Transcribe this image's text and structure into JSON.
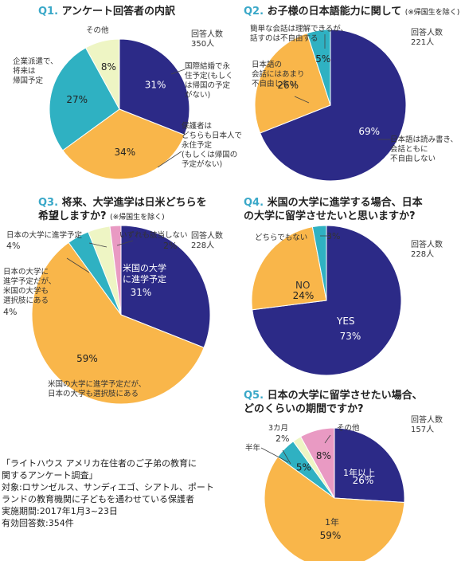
{
  "colors": {
    "navy": "#2c2a87",
    "orange": "#f9b64a",
    "teal": "#2fb1c2",
    "cream": "#eef5c4",
    "pink": "#e99ac3",
    "question_num": "#3aa8c8"
  },
  "q1": {
    "num": "Q1.",
    "title": "アンケート回答者の内訳",
    "respondents": "回答人数\n350人",
    "labels": {
      "kokusai": "国際結婚で永\n住予定(もしく\nは帰国の予定\nがない)",
      "hogosha": "保護者は\nどちらも日本人で\n永住予定\n(もしくは帰国の\n予定がない)",
      "kigyou": "企業派遣で、\n将来は\n帰国予定",
      "sonota": "その他"
    }
  },
  "q2": {
    "num": "Q2.",
    "title": "お子様の日本語能力に関して",
    "note": "(※帰国生を除く)",
    "respondents": "回答人数\n221人",
    "labels": {
      "kantan": "簡単な会話は理解できるが、\n話すのは不自由する",
      "amari": "日本語の\n会話にはあまり\n不自由しない",
      "yomikaki": "日本語は読み書き、\n会話ともに\n不自由しない"
    }
  },
  "q3": {
    "num": "Q3.",
    "title_l1": "将来、大学進学は日米どちらを",
    "title_l2": "希望しますか?",
    "note": "(※帰国生を除く)",
    "respondents": "回答人数\n228人",
    "labels": {
      "nihon": "日本の大学に進学予定",
      "nihon_pct": "4%",
      "izure": "いずれも該当しない",
      "izure_pct": "2%",
      "nichibei": "日本の大学に\n進学予定だが、\n米国の大学も\n選択肢にある",
      "nichibei_pct": "4%",
      "beikoku_in": "米国の大学\nに進学予定",
      "beikoku_dual": "米国の大学に進学予定だが、\n日本の大学も選択肢にある"
    }
  },
  "q4": {
    "num": "Q4.",
    "title_l1": "米国の大学に進学する場合、日本",
    "title_l2": "の大学に留学させたいと思いますか?",
    "respondents": "回答人数\n228人",
    "labels": {
      "dochira": "どちらでもない",
      "dochira_pct": "3%",
      "no": "NO",
      "yes": "YES"
    }
  },
  "q5": {
    "num": "Q5.",
    "title_l1": "日本の大学に留学させたい場合、",
    "title_l2": "どのくらいの期間ですか?",
    "respondents": "回答人数\n157人",
    "labels": {
      "sankagetsu": "3カ月",
      "sankagetsu_pct": "2%",
      "hantoshi": "半年",
      "sonota": "その他",
      "ichinen_ijou": "1年以上",
      "ichinen": "1年"
    }
  },
  "footer": "「ライトハウス アメリカ在住者のご子弟の教育に\n関するアンケート調査」\n対象:ロサンゼルス、サンディエゴ、シアトル、ポート\nランドの教育機関に子どもを通わせている保護者\n実施期間:2017年1月3~23日\n有効回答数:354件",
  "chart_data": [
    {
      "type": "pie",
      "title": "アンケート回答者の内訳",
      "slices": [
        {
          "label": "国際結婚で永住予定(もしくは帰国の予定がない)",
          "value": 31,
          "color": "#2c2a87"
        },
        {
          "label": "保護者はどちらも日本人で永住予定(もしくは帰国の予定がない)",
          "value": 34,
          "color": "#f9b64a"
        },
        {
          "label": "企業派遣で、将来は帰国予定",
          "value": 27,
          "color": "#2fb1c2"
        },
        {
          "label": "その他",
          "value": 8,
          "color": "#eef5c4"
        }
      ]
    },
    {
      "type": "pie",
      "title": "お子様の日本語能力に関して",
      "slices": [
        {
          "label": "日本語は読み書き、会話ともに不自由しない",
          "value": 69,
          "color": "#2c2a87"
        },
        {
          "label": "日本語の会話にはあまり不自由しない",
          "value": 26,
          "color": "#f9b64a"
        },
        {
          "label": "簡単な会話は理解できるが、話すのは不自由する",
          "value": 5,
          "color": "#2fb1c2"
        }
      ]
    },
    {
      "type": "pie",
      "title": "将来、大学進学は日米どちらを希望しますか?",
      "slices": [
        {
          "label": "米国の大学に進学予定",
          "value": 31,
          "color": "#2c2a87"
        },
        {
          "label": "米国の大学に進学予定だが、日本の大学も選択肢にある",
          "value": 59,
          "color": "#f9b64a"
        },
        {
          "label": "日本の大学に進学予定だが、米国の大学も選択肢にある",
          "value": 4,
          "color": "#2fb1c2"
        },
        {
          "label": "日本の大学に進学予定",
          "value": 4,
          "color": "#eef5c4"
        },
        {
          "label": "いずれも該当しない",
          "value": 2,
          "color": "#e99ac3"
        }
      ]
    },
    {
      "type": "pie",
      "title": "米国の大学に進学する場合、日本の大学に留学させたいと思いますか?",
      "slices": [
        {
          "label": "YES",
          "value": 73,
          "color": "#2c2a87"
        },
        {
          "label": "NO",
          "value": 24,
          "color": "#f9b64a"
        },
        {
          "label": "どちらでもない",
          "value": 3,
          "color": "#2fb1c2"
        }
      ]
    },
    {
      "type": "pie",
      "title": "日本の大学に留学させたい場合、どのくらいの期間ですか?",
      "slices": [
        {
          "label": "1年以上",
          "value": 26,
          "color": "#2c2a87"
        },
        {
          "label": "1年",
          "value": 59,
          "color": "#f9b64a"
        },
        {
          "label": "半年",
          "value": 5,
          "color": "#2fb1c2"
        },
        {
          "label": "3カ月",
          "value": 2,
          "color": "#eef5c4"
        },
        {
          "label": "その他",
          "value": 8,
          "color": "#e99ac3"
        }
      ]
    }
  ]
}
